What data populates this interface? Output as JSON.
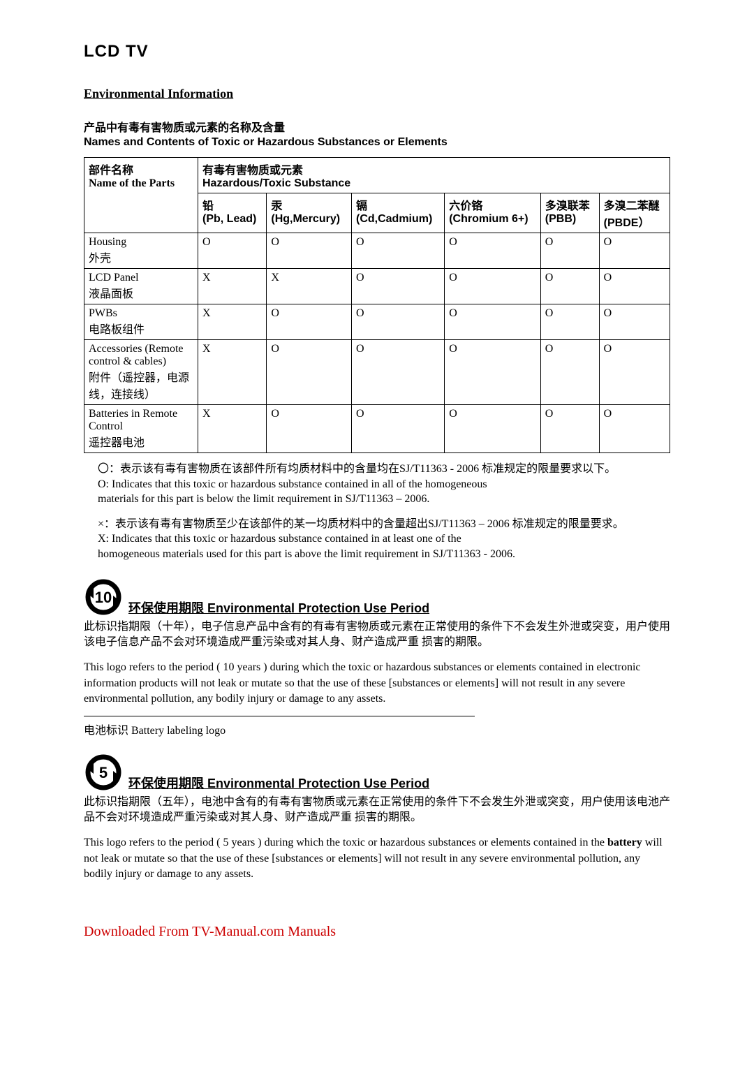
{
  "title": "LCD TV",
  "section_title": "Environmental Information",
  "table_header_cn": "产品中有毒有害物质或元素的名称及含量",
  "table_header_en": "Names and Contents of Toxic or Hazardous Substances or Elements",
  "table": {
    "group_header_cn": "有毒有害物质或元素",
    "group_header_en": "Hazardous/Toxic Substance",
    "part_header_cn": "部件名称",
    "part_header_en": "Name of the Parts",
    "columns": [
      {
        "cn": "铅",
        "en": "(Pb, Lead)"
      },
      {
        "cn": "汞",
        "en": "(Hg,Mercury)"
      },
      {
        "cn": "镉",
        "en": "(Cd,Cadmium)"
      },
      {
        "cn": "六价铬",
        "en": "(Chromium 6+)"
      },
      {
        "cn": "多溴联苯",
        "en": "(PBB)"
      },
      {
        "cn": "多溴二苯醚",
        "en": "(PBDE）"
      }
    ],
    "rows": [
      {
        "part_en": "Housing",
        "part_cn": "外壳",
        "vals": [
          "O",
          "O",
          "O",
          "O",
          "O",
          "O"
        ]
      },
      {
        "part_en": "LCD Panel",
        "part_cn": "液晶面板",
        "vals": [
          "X",
          "X",
          "O",
          "O",
          "O",
          "O"
        ]
      },
      {
        "part_en": "PWBs",
        "part_cn": "电路板组件",
        "vals": [
          "X",
          "O",
          "O",
          "O",
          "O",
          "O"
        ]
      },
      {
        "part_en": "Accessories (Remote control & cables)",
        "part_cn": "附件（遥控器，电源线，连接线）",
        "vals": [
          "X",
          "O",
          "O",
          "O",
          "O",
          "O"
        ]
      },
      {
        "part_en": "Batteries in Remote Control",
        "part_cn": "遥控器电池",
        "vals": [
          "X",
          "O",
          "O",
          "O",
          "O",
          "O"
        ]
      }
    ]
  },
  "legend": {
    "o_cn": "〇：表示该有毒有害物质在该部件所有均质材料中的含量均在SJ/T11363 - 2006 标准规定的限量要求以下。",
    "o_en1": "O: Indicates that this toxic or hazardous substance contained in all of the homogeneous",
    "o_en2": "materials for this part is below the limit requirement in SJ/T11363 – 2006.",
    "x_cn": "×：表示该有毒有害物质至少在该部件的某一均质材料中的含量超出SJ/T11363 – 2006 标准规定的限量要求。",
    "x_en1": "X: Indicates that this toxic or hazardous substance contained in at least one of the",
    "x_en2": "homogeneous materials used for this part is above the limit requirement in SJ/T11363 - 2006."
  },
  "epup10": {
    "number": "10",
    "title": "环保使用期限  Environmental Protection Use Period",
    "cn": "此标识指期限（十年），电子信息产品中含有的有毒有害物质或元素在正常使用的条件下不会发生外泄或突变，用户使用该电子信息产品不会对环境造成严重污染或对其人身、财产造成严重 损害的期限。",
    "en": "  This logo refers to the period ( 10 years ) during which the toxic or hazardous substances or elements contained in electronic information products will not leak or mutate so that the use of these [substances or elements] will not result in any severe environmental pollution, any bodily injury or damage to any assets."
  },
  "battery_label": "电池标识 Battery labeling logo",
  "epup5": {
    "number": "5",
    "title": "环保使用期限  Environmental Protection Use Period",
    "cn": "此标识指期限（五年），电池中含有的有毒有害物质或元素在正常使用的条件下不会发生外泄或突变，用户使用该电池产品不会对环境造成严重污染或对其人身、财产造成严重 损害的期限。",
    "en_pre": "This logo refers to the period ( 5 years ) during which the toxic or hazardous substances or elements contained in the ",
    "en_bold": "battery",
    "en_post": " will not leak or mutate so that the use of these [substances or elements] will not result in any severe environmental pollution, any bodily injury or damage to any assets."
  },
  "footer": "Downloaded From TV-Manual.com Manuals",
  "colors": {
    "text": "#000000",
    "link": "#cc0000",
    "border": "#000000",
    "background": "#ffffff"
  }
}
